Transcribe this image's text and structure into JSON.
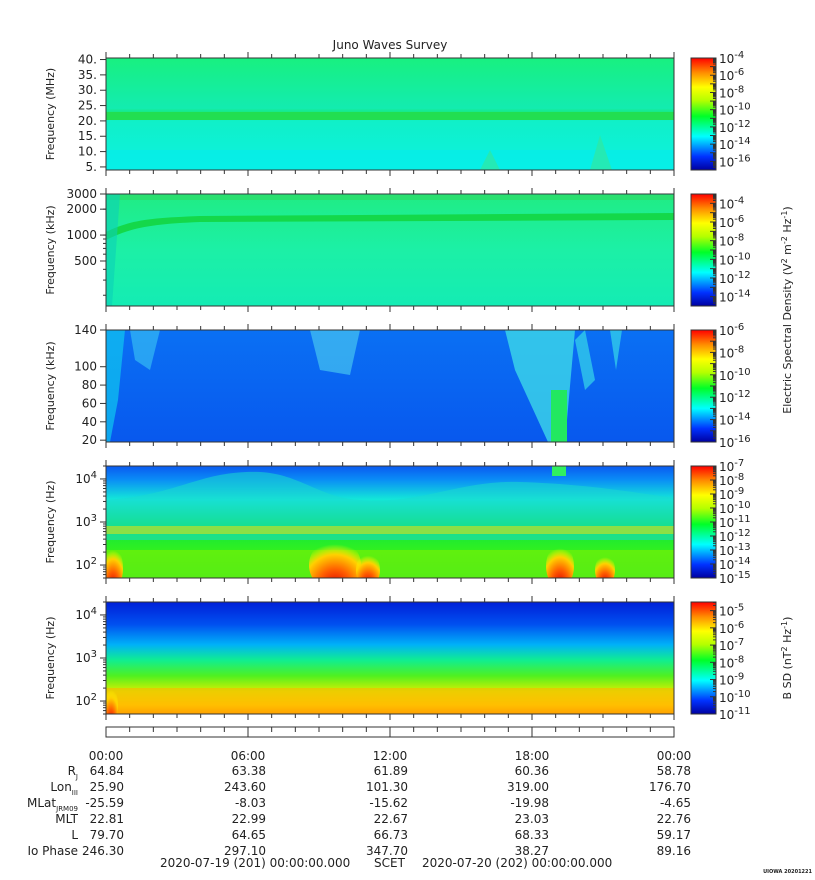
{
  "title": "Juno Waves Survey",
  "panels": [
    {
      "ylabel": "Frequency (MHz)",
      "yscale": "linear",
      "ylim": [
        4,
        40.5
      ],
      "yticks": [
        {
          "v": 5,
          "label": "5."
        },
        {
          "v": 10,
          "label": "10."
        },
        {
          "v": 15,
          "label": "15."
        },
        {
          "v": 20,
          "label": "20."
        },
        {
          "v": 25,
          "label": "25."
        },
        {
          "v": 30,
          "label": "30."
        },
        {
          "v": 35,
          "label": "35."
        },
        {
          "v": 40,
          "label": "40."
        }
      ],
      "colorbar": {
        "exp_min": -17,
        "exp_max": -4,
        "ticks": [
          {
            "v": -4,
            "label": "10",
            "exp": "-4"
          },
          {
            "v": -6,
            "label": "10",
            "exp": "-6"
          },
          {
            "v": -8,
            "label": "10",
            "exp": "-8"
          },
          {
            "v": -10,
            "label": "10",
            "exp": "-10"
          },
          {
            "v": -12,
            "label": "10",
            "exp": "-12"
          },
          {
            "v": -14,
            "label": "10",
            "exp": "-14"
          },
          {
            "v": -16,
            "label": "10",
            "exp": "-16"
          }
        ]
      }
    },
    {
      "ylabel": "Frequency (kHz)",
      "yscale": "log",
      "ylim": [
        150,
        3000
      ],
      "yticks": [
        {
          "v": 3000,
          "label": "3000"
        },
        {
          "v": 2000,
          "label": "2000"
        },
        {
          "v": 1000,
          "label": "1000"
        },
        {
          "v": 500,
          "label": "500"
        }
      ],
      "colorbar": {
        "exp_min": -15,
        "exp_max": -3,
        "ticks": [
          {
            "v": -4,
            "label": "10",
            "exp": "-4"
          },
          {
            "v": -6,
            "label": "10",
            "exp": "-6"
          },
          {
            "v": -8,
            "label": "10",
            "exp": "-8"
          },
          {
            "v": -10,
            "label": "10",
            "exp": "-10"
          },
          {
            "v": -12,
            "label": "10",
            "exp": "-12"
          },
          {
            "v": -14,
            "label": "10",
            "exp": "-14"
          }
        ]
      }
    },
    {
      "ylabel": "Frequency (kHz)",
      "yscale": "linear",
      "ylim": [
        18,
        140
      ],
      "yticks": [
        {
          "v": 140,
          "label": "140"
        },
        {
          "v": 100,
          "label": "100"
        },
        {
          "v": 80,
          "label": "80"
        },
        {
          "v": 60,
          "label": "60"
        },
        {
          "v": 40,
          "label": "40"
        },
        {
          "v": 20,
          "label": "20"
        }
      ],
      "colorbar": {
        "exp_min": -16,
        "exp_max": -6,
        "ticks": [
          {
            "v": -6,
            "label": "10",
            "exp": "-6"
          },
          {
            "v": -8,
            "label": "10",
            "exp": "-8"
          },
          {
            "v": -10,
            "label": "10",
            "exp": "-10"
          },
          {
            "v": -12,
            "label": "10",
            "exp": "-12"
          },
          {
            "v": -14,
            "label": "10",
            "exp": "-14"
          },
          {
            "v": -16,
            "label": "10",
            "exp": "-16"
          }
        ]
      }
    },
    {
      "ylabel": "Frequency (Hz)",
      "yscale": "log",
      "ylim": [
        50,
        20000
      ],
      "yticks": [
        {
          "v": 10000,
          "label": "10",
          "exp": "4"
        },
        {
          "v": 1000,
          "label": "10",
          "exp": "3"
        },
        {
          "v": 100,
          "label": "10",
          "exp": "2"
        }
      ],
      "colorbar": {
        "exp_min": -15,
        "exp_max": -7,
        "ticks": [
          {
            "v": -7,
            "label": "10",
            "exp": "-7"
          },
          {
            "v": -8,
            "label": "10",
            "exp": "-8"
          },
          {
            "v": -9,
            "label": "10",
            "exp": "-9"
          },
          {
            "v": -10,
            "label": "10",
            "exp": "-10"
          },
          {
            "v": -11,
            "label": "10",
            "exp": "-11"
          },
          {
            "v": -12,
            "label": "10",
            "exp": "-12"
          },
          {
            "v": -13,
            "label": "10",
            "exp": "-13"
          },
          {
            "v": -14,
            "label": "10",
            "exp": "-14"
          },
          {
            "v": -15,
            "label": "10",
            "exp": "-15"
          }
        ]
      }
    },
    {
      "ylabel": "Frequency (Hz)",
      "yscale": "log",
      "ylim": [
        50,
        20000
      ],
      "yticks": [
        {
          "v": 10000,
          "label": "10",
          "exp": "4"
        },
        {
          "v": 1000,
          "label": "10",
          "exp": "3"
        },
        {
          "v": 100,
          "label": "10",
          "exp": "2"
        }
      ],
      "colorbar": {
        "exp_min": -11,
        "exp_max": -4.5,
        "ticks": [
          {
            "v": -5,
            "label": "10",
            "exp": "-5"
          },
          {
            "v": -6,
            "label": "10",
            "exp": "-6"
          },
          {
            "v": -7,
            "label": "10",
            "exp": "-7"
          },
          {
            "v": -8,
            "label": "10",
            "exp": "-8"
          },
          {
            "v": -9,
            "label": "10",
            "exp": "-9"
          },
          {
            "v": -10,
            "label": "10",
            "exp": "-10"
          },
          {
            "v": -11,
            "label": "10",
            "exp": "-11"
          }
        ]
      }
    }
  ],
  "colorbar_labels": {
    "electric": "Electric Spectral Density (V",
    "electric_tail": ")",
    "magnetic": "B SD (nT",
    "magnetic_tail": ")"
  },
  "time_axis": {
    "ticks": [
      "00:00",
      "06:00",
      "12:00",
      "18:00",
      "00:00"
    ]
  },
  "ephemeris": {
    "labels": [
      "R",
      "Lon",
      "MLat",
      "MLT",
      "L",
      "Io Phase"
    ],
    "label_subs": [
      "J",
      "III",
      "JRM09",
      "",
      "",
      ""
    ],
    "rows": [
      [
        "64.84",
        "63.38",
        "61.89",
        "60.36",
        "58.78"
      ],
      [
        "25.90",
        "243.60",
        "101.30",
        "319.00",
        "176.70"
      ],
      [
        "-25.59",
        "-8.03",
        "-15.62",
        "-19.98",
        "-4.65"
      ],
      [
        "22.81",
        "22.99",
        "22.67",
        "23.03",
        "22.76"
      ],
      [
        "79.70",
        "64.65",
        "66.73",
        "68.33",
        "59.17"
      ],
      [
        "246.30",
        "297.10",
        "347.70",
        "38.27",
        "89.16"
      ]
    ]
  },
  "footer": {
    "start": "2020-07-19 (201) 00:00:00.000",
    "scet": "SCET",
    "end": "2020-07-20 (202) 00:00:00.000"
  },
  "credit": "UIOWA 20201221"
}
